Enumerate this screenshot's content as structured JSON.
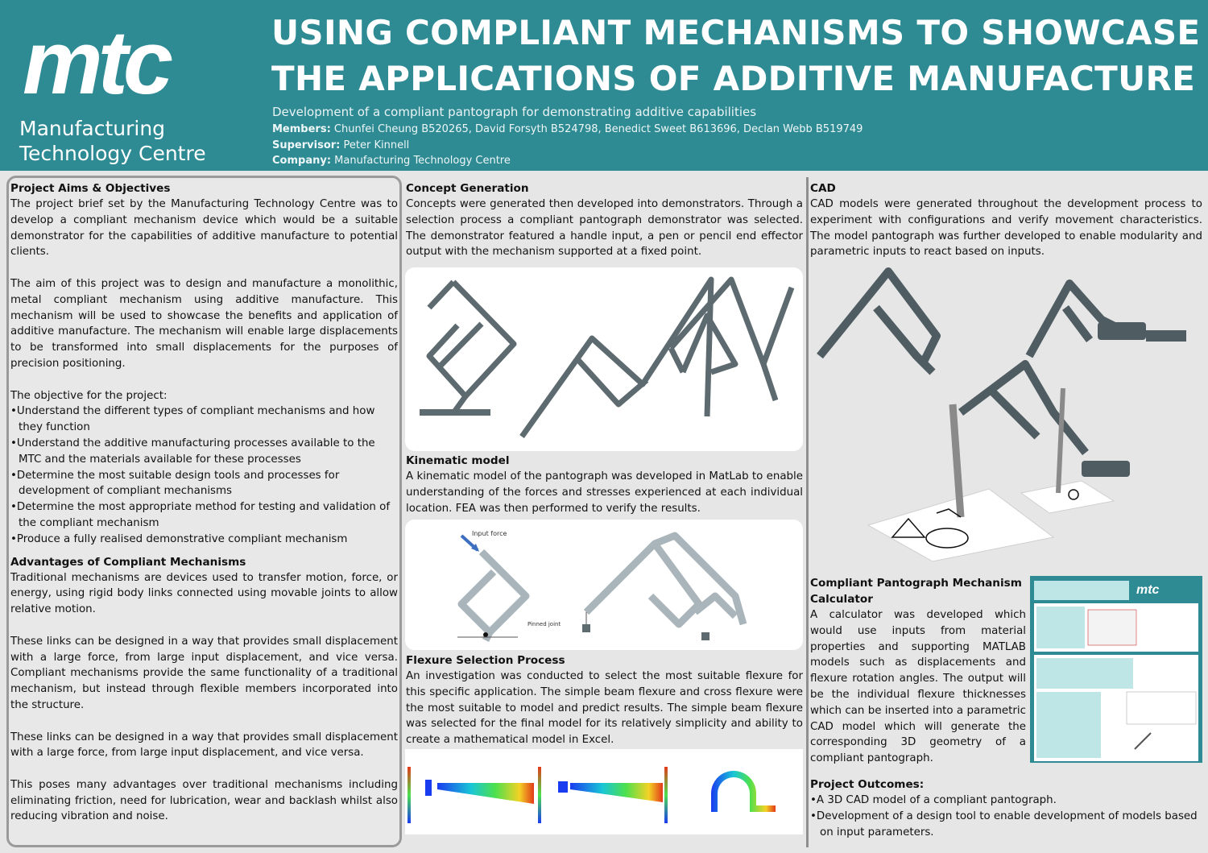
{
  "header": {
    "logo": {
      "mark": "mtc",
      "line1": "Manufacturing",
      "line2": "Technology Centre"
    },
    "title": "USING COMPLIANT MECHANISMS TO SHOWCASE THE APPLICATIONS OF ADDITIVE MANUFACTURE",
    "subtitle": "Development of a compliant pantograph for demonstrating additive capabilities",
    "members_label": "Members:",
    "members": "Chunfei Cheung B520265,  David Forsyth B524798,  Benedict Sweet B613696,  Declan Webb B519749",
    "supervisor_label": "Supervisor:",
    "supervisor": "Peter Kinnell",
    "company_label": "Company:",
    "company": "Manufacturing Technology Centre"
  },
  "aims": {
    "heading": "Project Aims & Objectives",
    "p1": "The project brief set by the Manufacturing Technology Centre was to develop a compliant mechanism device which would be a suitable demonstrator for the capabilities of additive manufacture to potential clients.",
    "p2": "The aim of this project was to design and manufacture a monolithic, metal compliant mechanism using additive manufacture. This mechanism will be used to showcase the benefits and application of additive manufacture. The mechanism will enable large displacements to be transformed into small displacements for the purposes of precision positioning.",
    "objectives_intro": "The objective for the project:",
    "objectives": [
      "Understand the different types of compliant mechanisms and how they function",
      "Understand the additive manufacturing processes available to the MTC and the materials available for these processes",
      "Determine the most suitable design tools and processes for development of compliant mechanisms",
      "Determine the most appropriate method for testing and validation of the compliant mechanism",
      "Produce a fully realised demonstrative compliant mechanism"
    ]
  },
  "advantages": {
    "heading": "Advantages of Compliant Mechanisms",
    "p1": "Traditional mechanisms are devices used to transfer motion, force, or energy, using rigid body links connected using movable joints to allow relative motion.",
    "p2": "These links can be designed in a way that provides small displacement with a large force, from large input displacement, and vice versa. Compliant mechanisms provide the same functionality of a traditional mechanism, but instead through flexible members incorporated into the structure.",
    "p3": "These links can be designed in a way that provides small displacement with a large force, from large input displacement, and vice versa.",
    "p4": "This poses many advantages over traditional mechanisms including eliminating friction, need for lubrication, wear and backlash whilst also reducing vibration and noise."
  },
  "concept": {
    "heading": "Concept Generation",
    "p1": "Concepts were generated then developed into demonstrators. Through a selection process a compliant pantograph demonstrator was selected. The demonstrator featured a handle input, a pen or pencil end effector output with the mechanism supported at a fixed point."
  },
  "kinematic": {
    "heading": "Kinematic model",
    "p1": "A kinematic model of the pantograph was developed in MatLab to enable understanding of the forces and stresses experienced at each individual location. FEA was then performed to verify the results.",
    "label_input_force": "Input force",
    "label_pinned_joint": "Pinned joint"
  },
  "flexure": {
    "heading": "Flexure Selection Process",
    "p1": "An investigation was conducted to select the most suitable flexure for this specific application. The simple beam flexure and cross flexure were the most suitable to model and predict results. The simple beam flexure was selected for the final model for its relatively simplicity and ability to create a mathematical model in Excel."
  },
  "cad": {
    "heading": "CAD",
    "p1": "CAD models were generated throughout the development process to experiment with configurations and verify movement characteristics. The model pantograph was further developed to enable modularity and parametric inputs to react based on inputs."
  },
  "calculator": {
    "heading": "Compliant Pantograph Mechanism Calculator",
    "p1": "A calculator was developed which would use inputs from material properties and supporting MATLAB models such as displacements and flexure rotation angles. The output will be the individual flexure thicknesses which can be inserted into a parametric CAD model which will generate the corresponding 3D geometry of a compliant pantograph.",
    "logo": "mtc"
  },
  "outcomes": {
    "heading": "Project Outcomes:",
    "items": [
      "A 3D CAD model of a compliant pantograph.",
      "Development of a design tool to enable development of models based on input parameters."
    ]
  },
  "colors": {
    "header_bg": "#2e8a93",
    "page_bg": "#e6e6e6",
    "mechanism_grey": "#5d6a70"
  }
}
